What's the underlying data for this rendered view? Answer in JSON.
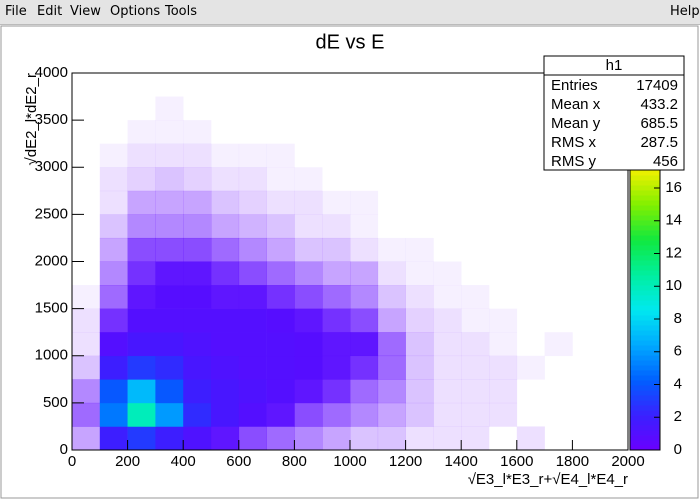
{
  "menu": {
    "items": [
      "File",
      "Edit",
      "View",
      "Options",
      "Tools"
    ],
    "help": "Help"
  },
  "chart_data": {
    "type": "heatmap",
    "title": "dE vs E",
    "x_label": "√E3_l*E3_r+√E4_l*E4_r",
    "y_label": "√dE2_l*dE2_r",
    "xbins": [
      0,
      100,
      200,
      300,
      400,
      500,
      600,
      700,
      800,
      900,
      1000,
      1100,
      1200,
      1300,
      1400,
      1500,
      1600,
      1700,
      1800,
      1900,
      2000
    ],
    "ybins": [
      0,
      250,
      500,
      750,
      1000,
      1250,
      1500,
      1750,
      2000,
      2250,
      2500,
      2750,
      3000,
      3250,
      3500,
      3750,
      4000
    ],
    "z": [
      [
        0.3,
        2,
        3,
        2,
        1.2,
        0.8,
        0.6,
        0.5,
        0.4,
        0.3,
        0.2,
        0.2,
        0.1,
        0.1,
        0.1,
        0,
        0.1,
        0,
        0,
        0
      ],
      [
        0.5,
        5,
        10,
        6,
        2.5,
        1.5,
        1,
        0.8,
        0.6,
        0.5,
        0.4,
        0.3,
        0.2,
        0.1,
        0.1,
        0.1,
        0,
        0,
        0,
        0
      ],
      [
        0.4,
        4,
        7,
        4,
        2,
        1.5,
        1.2,
        1,
        0.8,
        0.7,
        0.5,
        0.4,
        0.2,
        0.1,
        0.1,
        0.1,
        0,
        0,
        0,
        0
      ],
      [
        0.2,
        2,
        3,
        2.5,
        1.5,
        1.2,
        1,
        1,
        0.9,
        0.8,
        0.7,
        0.5,
        0.2,
        0.1,
        0.1,
        0.1,
        0.05,
        0,
        0,
        0
      ],
      [
        0.1,
        1,
        1.5,
        1.5,
        1.2,
        1,
        1,
        1,
        0.9,
        0.8,
        0.8,
        0.5,
        0.2,
        0.1,
        0.1,
        0.05,
        0,
        0.05,
        0,
        0
      ],
      [
        0.1,
        0.7,
        1,
        1,
        1,
        1,
        1,
        0.9,
        0.8,
        0.7,
        0.6,
        0.3,
        0.15,
        0.1,
        0.05,
        0.05,
        0,
        0,
        0,
        0
      ],
      [
        0.05,
        0.5,
        0.8,
        0.9,
        0.9,
        0.8,
        0.8,
        0.7,
        0.6,
        0.5,
        0.4,
        0.2,
        0.1,
        0.05,
        0.05,
        0,
        0,
        0,
        0,
        0
      ],
      [
        0,
        0.4,
        0.7,
        0.8,
        0.8,
        0.7,
        0.6,
        0.5,
        0.4,
        0.3,
        0.3,
        0.1,
        0.05,
        0.05,
        0,
        0,
        0,
        0,
        0,
        0
      ],
      [
        0,
        0.3,
        0.6,
        0.6,
        0.6,
        0.5,
        0.4,
        0.3,
        0.2,
        0.2,
        0.1,
        0.05,
        0.05,
        0,
        0,
        0,
        0,
        0,
        0,
        0
      ],
      [
        0,
        0.2,
        0.4,
        0.4,
        0.4,
        0.3,
        0.25,
        0.2,
        0.1,
        0.1,
        0.05,
        0,
        0,
        0,
        0,
        0,
        0,
        0,
        0,
        0
      ],
      [
        0,
        0.1,
        0.3,
        0.3,
        0.3,
        0.2,
        0.15,
        0.1,
        0.1,
        0.05,
        0.05,
        0,
        0,
        0,
        0,
        0,
        0,
        0,
        0,
        0
      ],
      [
        0,
        0.1,
        0.15,
        0.2,
        0.15,
        0.1,
        0.1,
        0.05,
        0.05,
        0,
        0,
        0,
        0,
        0,
        0,
        0,
        0,
        0,
        0,
        0
      ],
      [
        0,
        0.05,
        0.1,
        0.1,
        0.1,
        0.05,
        0.05,
        0.05,
        0,
        0,
        0,
        0,
        0,
        0,
        0,
        0,
        0,
        0,
        0,
        0
      ],
      [
        0,
        0,
        0.05,
        0.05,
        0.05,
        0,
        0,
        0,
        0,
        0,
        0,
        0,
        0,
        0,
        0,
        0,
        0,
        0,
        0,
        0
      ],
      [
        0,
        0,
        0,
        0.05,
        0,
        0,
        0,
        0,
        0,
        0,
        0,
        0,
        0,
        0,
        0,
        0,
        0,
        0,
        0,
        0
      ],
      [
        0,
        0,
        0,
        0,
        0,
        0,
        0,
        0,
        0,
        0,
        0,
        0,
        0,
        0,
        0,
        0,
        0,
        0,
        0,
        0
      ]
    ],
    "xlim": [
      0,
      2000
    ],
    "xticks": [
      0,
      200,
      400,
      600,
      800,
      1000,
      1200,
      1400,
      1600,
      1800,
      2000
    ],
    "ylim": [
      0,
      4000
    ],
    "yticks": [
      0,
      500,
      1000,
      1500,
      2000,
      2500,
      3000,
      3500,
      4000
    ],
    "zlim": [
      0,
      17.1
    ],
    "zticks": [
      0,
      2,
      4,
      6,
      8,
      10,
      12,
      14,
      16
    ],
    "palette": [
      "#6a00ff",
      "#3a20ff",
      "#0060ff",
      "#00a8ff",
      "#00e8f0",
      "#00f0a0",
      "#10e840",
      "#80f000",
      "#f0f000"
    ],
    "stats": {
      "name": "h1",
      "rows": [
        {
          "label": "Entries",
          "value": 17409
        },
        {
          "label": "Mean x",
          "value": 433.2
        },
        {
          "label": "Mean y",
          "value": 685.5
        },
        {
          "label": "RMS x",
          "value": 287.5
        },
        {
          "label": "RMS y",
          "value": 456
        }
      ]
    }
  }
}
